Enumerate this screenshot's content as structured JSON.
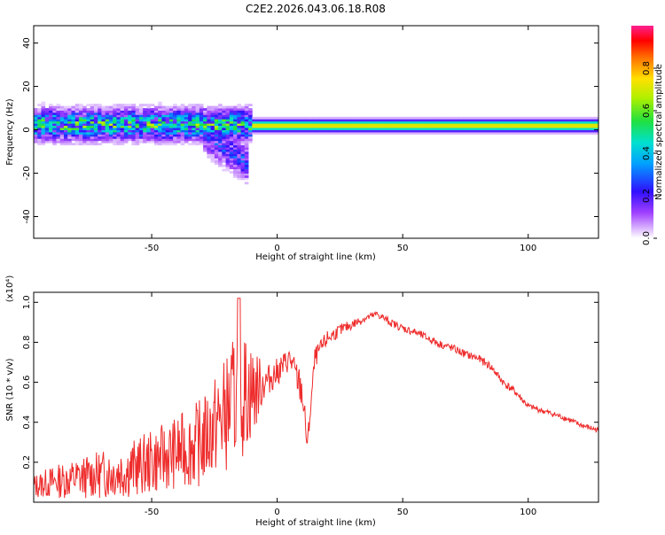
{
  "title": "C2E2.2026.043.06.18.R08",
  "colors": {
    "snr_line": "#ee2b2b",
    "axis": "#000000",
    "background": "#ffffff"
  },
  "chart_data": [
    {
      "type": "heatmap",
      "name": "spectrogram",
      "xlabel": "Height of straight line (km)",
      "ylabel": "Frequency (Hz)",
      "xlim": [
        -97,
        128
      ],
      "ylim": [
        -50,
        48
      ],
      "xticks": [
        -50,
        0,
        50,
        100
      ],
      "yticks": [
        -40,
        -20,
        0,
        20,
        40
      ],
      "colorbar": {
        "label": "Normalized spectral amplitude",
        "range": [
          0,
          1
        ],
        "ticks": [
          0.0,
          0.2,
          0.4,
          0.6,
          0.8
        ]
      },
      "features": [
        {
          "x_from": -97,
          "x_to": -10,
          "f_center": 2,
          "f_width": 8,
          "amplitude": 0.5,
          "noisy": true
        },
        {
          "x_from": -10,
          "x_to": 128,
          "f_center": 1.5,
          "f_width": 3,
          "amplitude": 0.75,
          "noisy": false
        },
        {
          "x_from": -30,
          "x_to": -12,
          "f_center": -15,
          "f_width": 10,
          "amplitude": 0.25,
          "noisy": true
        }
      ]
    },
    {
      "type": "line",
      "name": "snr",
      "xlabel": "Height of straight line (km)",
      "ylabel": "SNR (10 * v/v)",
      "scale_label": "(x10⁴)",
      "xlim": [
        -97,
        128
      ],
      "ylim": [
        0,
        1.05
      ],
      "xticks": [
        -50,
        0,
        50,
        100
      ],
      "yticks": [
        0.2,
        0.4,
        0.6,
        0.8,
        1.0
      ],
      "series": [
        {
          "name": "SNR",
          "x": [
            -97,
            -90,
            -80,
            -70,
            -60,
            -50,
            -40,
            -30,
            -25,
            -20,
            -15,
            -10,
            -5,
            0,
            5,
            10,
            12,
            15,
            20,
            25,
            30,
            35,
            40,
            45,
            50,
            55,
            60,
            65,
            70,
            75,
            80,
            85,
            90,
            95,
            100,
            105,
            110,
            115,
            120,
            125,
            128
          ],
          "values": [
            0.08,
            0.1,
            0.12,
            0.14,
            0.16,
            0.2,
            0.25,
            0.3,
            0.38,
            0.45,
            0.55,
            0.55,
            0.6,
            0.65,
            0.72,
            0.55,
            0.28,
            0.72,
            0.82,
            0.86,
            0.89,
            0.92,
            0.94,
            0.9,
            0.87,
            0.85,
            0.82,
            0.79,
            0.77,
            0.74,
            0.72,
            0.68,
            0.6,
            0.55,
            0.48,
            0.46,
            0.44,
            0.42,
            0.39,
            0.37,
            0.36
          ],
          "noise": [
            0.06,
            0.08,
            0.1,
            0.12,
            0.14,
            0.16,
            0.18,
            0.22,
            0.25,
            0.3,
            0.35,
            0.25,
            0.08,
            0.07,
            0.06,
            0.1,
            0.05,
            0.05,
            0.04,
            0.03,
            0.025,
            0.02,
            0.02,
            0.02,
            0.02,
            0.02,
            0.02,
            0.02,
            0.02,
            0.02,
            0.02,
            0.02,
            0.02,
            0.02,
            0.015,
            0.015,
            0.015,
            0.015,
            0.015,
            0.015,
            0.015
          ]
        }
      ]
    }
  ]
}
